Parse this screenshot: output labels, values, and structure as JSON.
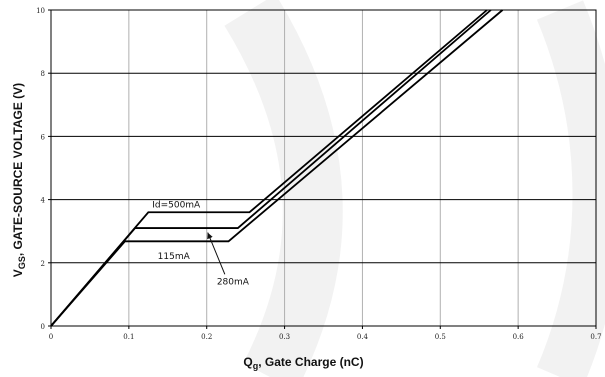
{
  "chart_data": {
    "type": "line",
    "xlabel": {
      "main": "Q",
      "sub": "g",
      "rest": ", Gate Charge (nC)"
    },
    "ylabel": {
      "main": "V",
      "sub": "GS",
      "rest": ", GATE-SOURCE VOLTAGE (V)"
    },
    "xlim": [
      0,
      0.7
    ],
    "ylim": [
      0,
      10
    ],
    "x_ticks": [
      "0",
      "0.1",
      "0.2",
      "0.3",
      "0.4",
      "0.5",
      "0.6",
      "0.7"
    ],
    "y_ticks": [
      "0",
      "2",
      "4",
      "6",
      "8",
      "10"
    ],
    "grid": true,
    "series": [
      {
        "name": "Id=500mA",
        "x": [
          0,
          0.125,
          0.255,
          0.56
        ],
        "y": [
          0,
          3.6,
          3.6,
          10
        ]
      },
      {
        "name": "280mA",
        "x": [
          0,
          0.108,
          0.24,
          0.565
        ],
        "y": [
          0,
          3.1,
          3.1,
          10
        ]
      },
      {
        "name": "115mA",
        "x": [
          0,
          0.095,
          0.228,
          0.58
        ],
        "y": [
          0,
          2.68,
          2.68,
          10
        ]
      }
    ],
    "annotations": [
      {
        "text": "Id=500mA",
        "x": 0.13,
        "y": 3.75
      },
      {
        "text": "115mA",
        "x": 0.137,
        "y": 2.12
      },
      {
        "text": "280mA",
        "x": 0.213,
        "y": 1.32,
        "arrow_to": [
          0.2,
          3.05
        ]
      }
    ]
  }
}
